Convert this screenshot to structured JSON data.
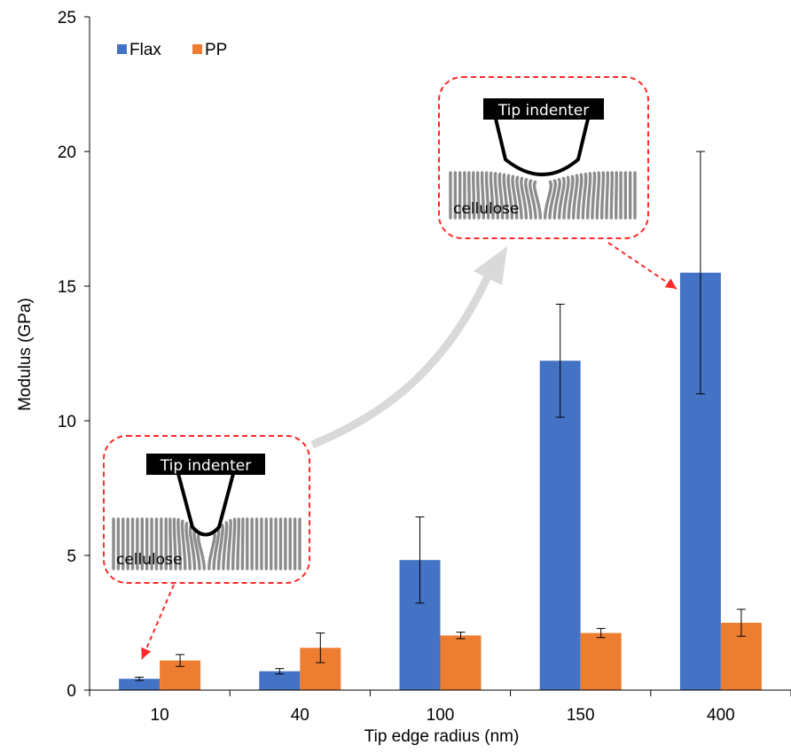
{
  "chart_data": {
    "type": "bar",
    "categories": [
      "10",
      "40",
      "100",
      "150",
      "400"
    ],
    "series": [
      {
        "name": "Flax",
        "color": "#4472C4",
        "values": [
          0.42,
          0.7,
          4.83,
          12.23,
          15.5
        ],
        "errors": [
          0.06,
          0.1,
          1.6,
          2.1,
          4.5
        ]
      },
      {
        "name": "PP",
        "color": "#ED7D31",
        "values": [
          1.1,
          1.57,
          2.03,
          2.12,
          2.5
        ],
        "errors": [
          0.22,
          0.55,
          0.12,
          0.17,
          0.5
        ]
      }
    ],
    "xlabel": "Tip edge radius (nm)",
    "ylabel": "Modulus (GPa)",
    "ylim": [
      0,
      25
    ],
    "yticks": [
      0,
      5,
      10,
      15,
      20,
      25
    ],
    "grid": false,
    "legend": "top-left",
    "annotations": [
      {
        "label": "Tip indenter",
        "material": "cellulose",
        "points_to": "10"
      },
      {
        "label": "Tip indenter",
        "material": "cellulose",
        "points_to": "400"
      }
    ]
  }
}
